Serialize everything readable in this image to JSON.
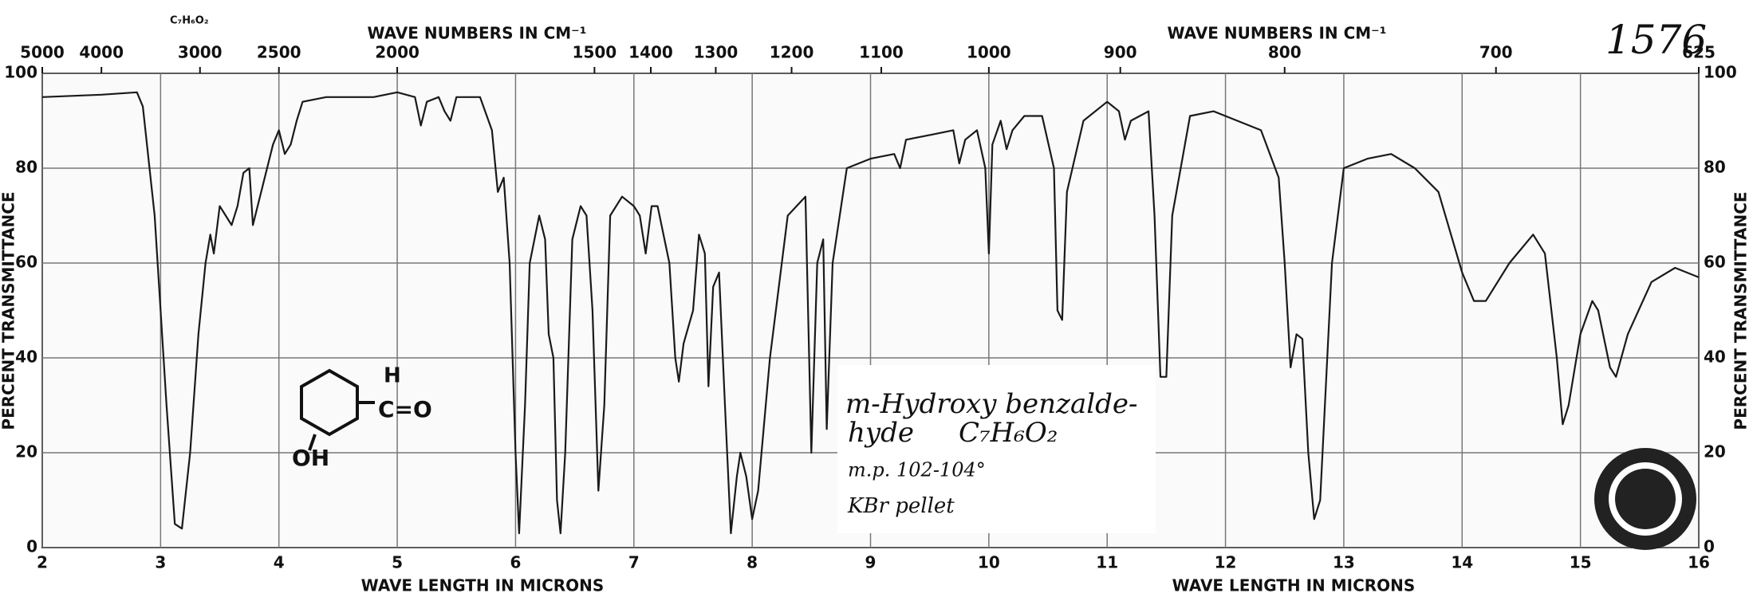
{
  "chart_data": {
    "type": "line",
    "color": "#1a1a1a",
    "xlabel": "WAVE LENGTH IN MICRONS",
    "x2label": "WAVE NUMBERS IN CM⁻¹",
    "ylabel": "PERCENT TRANSMITTANCE",
    "xlim": [
      2,
      16
    ],
    "ylim": [
      0,
      100
    ],
    "xticks": [
      2,
      3,
      4,
      5,
      6,
      7,
      8,
      9,
      10,
      11,
      12,
      13,
      14,
      15,
      16
    ],
    "x2ticks": [
      {
        "value": 2,
        "label": "5000"
      },
      {
        "value": 2.5,
        "label": "4000"
      },
      {
        "value": 3.333,
        "label": "3000"
      },
      {
        "value": 4,
        "label": "2500"
      },
      {
        "value": 5,
        "label": "2000"
      },
      {
        "value": 6.667,
        "label": "1500"
      },
      {
        "value": 7.143,
        "label": "1400"
      },
      {
        "value": 7.692,
        "label": "1300"
      },
      {
        "value": 8.333,
        "label": "1200"
      },
      {
        "value": 9.091,
        "label": "1100"
      },
      {
        "value": 10,
        "label": "1000"
      },
      {
        "value": 11.111,
        "label": "900"
      },
      {
        "value": 12.5,
        "label": "800"
      },
      {
        "value": 14.286,
        "label": "700"
      },
      {
        "value": 16,
        "label": "625"
      }
    ],
    "yticks": [
      0,
      20,
      40,
      60,
      80,
      100
    ],
    "grid": true,
    "x": [
      2.0,
      2.5,
      2.8,
      2.85,
      2.95,
      3.05,
      3.12,
      3.18,
      3.25,
      3.32,
      3.38,
      3.42,
      3.45,
      3.5,
      3.55,
      3.6,
      3.65,
      3.7,
      3.75,
      3.78,
      3.83,
      3.9,
      3.95,
      4.0,
      4.05,
      4.1,
      4.15,
      4.2,
      4.4,
      4.6,
      4.8,
      5.0,
      5.15,
      5.2,
      5.25,
      5.35,
      5.4,
      5.45,
      5.5,
      5.7,
      5.8,
      5.85,
      5.9,
      5.95,
      6.0,
      6.03,
      6.08,
      6.12,
      6.2,
      6.25,
      6.28,
      6.32,
      6.35,
      6.38,
      6.42,
      6.48,
      6.55,
      6.6,
      6.65,
      6.7,
      6.75,
      6.8,
      6.9,
      7.0,
      7.05,
      7.1,
      7.15,
      7.2,
      7.3,
      7.35,
      7.38,
      7.42,
      7.5,
      7.55,
      7.6,
      7.63,
      7.67,
      7.72,
      7.77,
      7.82,
      7.87,
      7.9,
      7.95,
      8.0,
      8.05,
      8.15,
      8.3,
      8.45,
      8.5,
      8.55,
      8.6,
      8.63,
      8.68,
      8.8,
      9.0,
      9.2,
      9.25,
      9.3,
      9.5,
      9.7,
      9.75,
      9.8,
      9.9,
      9.97,
      10.0,
      10.03,
      10.1,
      10.15,
      10.2,
      10.3,
      10.45,
      10.55,
      10.58,
      10.62,
      10.66,
      10.8,
      11.0,
      11.1,
      11.15,
      11.2,
      11.35,
      11.4,
      11.45,
      11.5,
      11.55,
      11.7,
      11.9,
      12.1,
      12.3,
      12.45,
      12.5,
      12.55,
      12.6,
      12.65,
      12.7,
      12.75,
      12.8,
      12.9,
      13.0,
      13.2,
      13.4,
      13.6,
      13.8,
      14.0,
      14.1,
      14.2,
      14.4,
      14.6,
      14.7,
      14.8,
      14.85,
      14.9,
      15.0,
      15.1,
      15.15,
      15.25,
      15.3,
      15.4,
      15.6,
      15.8,
      16.0
    ],
    "values": [
      95,
      95.5,
      96,
      93,
      70,
      30,
      5,
      4,
      20,
      45,
      60,
      66,
      62,
      72,
      70,
      68,
      72,
      79,
      80,
      68,
      73,
      80,
      85,
      88,
      83,
      85,
      90,
      94,
      95,
      95,
      95,
      96,
      95,
      89,
      94,
      95,
      92,
      90,
      95,
      95,
      88,
      75,
      78,
      60,
      20,
      3,
      30,
      60,
      70,
      65,
      45,
      40,
      10,
      3,
      20,
      65,
      72,
      70,
      50,
      12,
      30,
      70,
      74,
      72,
      70,
      62,
      72,
      72,
      60,
      40,
      35,
      43,
      50,
      66,
      62,
      34,
      55,
      58,
      30,
      3,
      15,
      20,
      15,
      6,
      12,
      40,
      70,
      74,
      20,
      60,
      65,
      25,
      60,
      80,
      82,
      83,
      80,
      86,
      87,
      88,
      81,
      86,
      88,
      80,
      62,
      85,
      90,
      84,
      88,
      91,
      91,
      80,
      50,
      48,
      75,
      90,
      94,
      92,
      86,
      90,
      92,
      70,
      36,
      36,
      70,
      91,
      92,
      90,
      88,
      78,
      60,
      38,
      45,
      44,
      20,
      6,
      10,
      60,
      80,
      82,
      83,
      80,
      75,
      58,
      52,
      52,
      60,
      66,
      62,
      40,
      26,
      30,
      45,
      52,
      50,
      38,
      36,
      45,
      56,
      59,
      57
    ],
    "annotations": [
      "1576",
      "C₇H₆O₂",
      "m-Hydroxy benzalde-",
      "hyde",
      "C₇H₆O₂",
      "m.p. 102-104°",
      "KBr pellet",
      "H",
      "C=O",
      "OH"
    ]
  }
}
